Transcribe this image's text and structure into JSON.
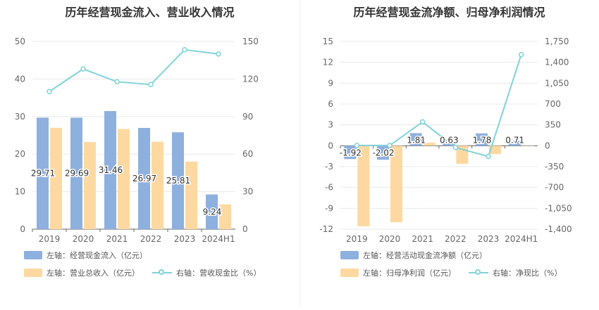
{
  "colors": {
    "bar_primary": "#8eb0de",
    "bar_secondary": "#fdd9a1",
    "line": "#80d3d9",
    "grid": "#e8e8e8",
    "axis_text": "#666666"
  },
  "chart_data": [
    {
      "type": "bar+line",
      "title": "历年经营现金流入、营业收入情况",
      "categories": [
        "2019",
        "2020",
        "2021",
        "2022",
        "2023",
        "2024H1"
      ],
      "left_axis": {
        "ylim": [
          0,
          50
        ],
        "ticks": [
          "0",
          "10",
          "20",
          "30",
          "40",
          "50"
        ]
      },
      "right_axis": {
        "ylim": [
          0,
          150
        ],
        "ticks": [
          "0",
          "30",
          "60",
          "90",
          "120",
          "150"
        ]
      },
      "series": [
        {
          "name": "左轴：经营现金流入（亿元）",
          "kind": "bar",
          "axis": "left",
          "values": [
            29.71,
            29.69,
            31.46,
            26.97,
            25.81,
            9.24
          ],
          "labels": [
            "29.71",
            "29.69",
            "31.46",
            "26.97",
            "25.81",
            "9.24"
          ]
        },
        {
          "name": "左轴：营业总收入（亿元）",
          "kind": "bar",
          "axis": "left",
          "values": [
            27.0,
            23.2,
            26.7,
            23.3,
            18.0,
            6.6
          ]
        },
        {
          "name": "右轴：营收现金比（%）",
          "kind": "line",
          "axis": "right",
          "values": [
            110.0,
            128.0,
            117.8,
            115.6,
            143.4,
            140.0
          ]
        }
      ]
    },
    {
      "type": "bar+line",
      "title": "历年经营现金流净额、归母净利润情况",
      "categories": [
        "2019",
        "2020",
        "2021",
        "2022",
        "2023",
        "2024H1"
      ],
      "left_axis": {
        "ylim": [
          -12,
          15
        ],
        "ticks": [
          "-12",
          "-9",
          "-6",
          "-3",
          "0",
          "3",
          "6",
          "9",
          "12",
          "15"
        ]
      },
      "right_axis": {
        "ylim": [
          -1400,
          1750
        ],
        "ticks": [
          "-1,400",
          "-1,050",
          "-700",
          "-350",
          "0",
          "350",
          "700",
          "1,050",
          "1,400",
          "1,750"
        ]
      },
      "series": [
        {
          "name": "左轴：经营活动现金流净额（亿元）",
          "kind": "bar",
          "axis": "left",
          "values": [
            -1.92,
            -2.02,
            1.81,
            0.63,
            1.78,
            0.71
          ],
          "labels": [
            "-1.92",
            "-2.02",
            "1.81",
            "0.63",
            "1.78",
            "0.71"
          ]
        },
        {
          "name": "左轴：归母净利润（亿元）",
          "kind": "bar",
          "axis": "left",
          "values": [
            -11.6,
            -11.0,
            0.45,
            -2.6,
            -1.2,
            0.0
          ]
        },
        {
          "name": "右轴：净现比（%）",
          "kind": "line",
          "axis": "right",
          "values": [
            5,
            5,
            400,
            -30,
            -180,
            1530
          ]
        }
      ]
    }
  ]
}
